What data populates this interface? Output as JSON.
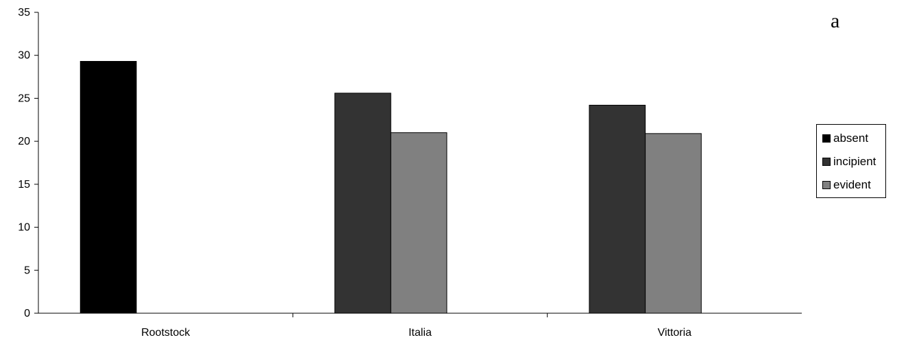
{
  "panel_letter": "a",
  "chart_data": {
    "type": "bar",
    "categories": [
      "Rootstock",
      "Italia",
      "Vittoria"
    ],
    "series": [
      {
        "name": "absent",
        "color": "#000000",
        "values": [
          29.3,
          null,
          null
        ]
      },
      {
        "name": "incipient",
        "color": "#333333",
        "values": [
          null,
          25.6,
          24.2
        ]
      },
      {
        "name": "evident",
        "color": "#808080",
        "values": [
          null,
          21.0,
          20.9
        ]
      }
    ],
    "ylim": [
      0,
      35
    ],
    "yticks": [
      0,
      5,
      10,
      15,
      20,
      25,
      30,
      35
    ],
    "title": "",
    "xlabel": "",
    "ylabel": "",
    "grid": false,
    "legend_position": "right"
  }
}
